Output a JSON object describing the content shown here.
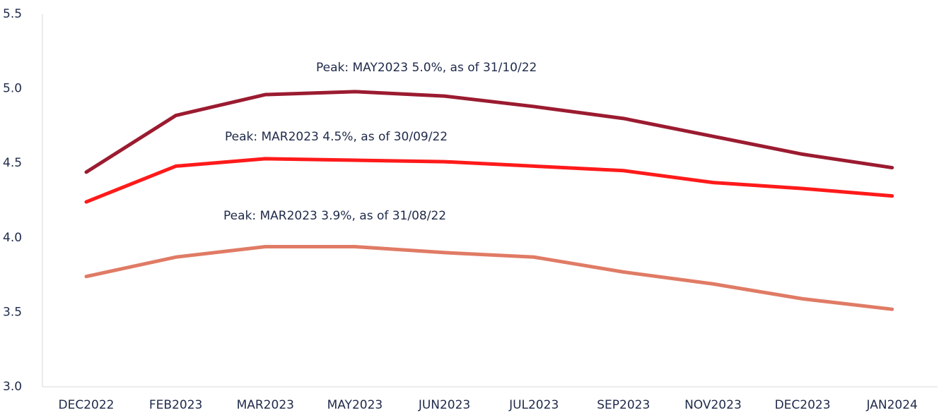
{
  "chart_data": {
    "type": "line",
    "categories": [
      "DEC2022",
      "FEB2023",
      "MAR2023",
      "MAY2023",
      "JUN2023",
      "JUL2023",
      "SEP2023",
      "NOV2023",
      "DEC2023",
      "JAN2024"
    ],
    "series": [
      {
        "color": "#9b1b30",
        "values": [
          4.44,
          4.82,
          4.96,
          4.98,
          4.95,
          4.88,
          4.8,
          4.68,
          4.56,
          4.47
        ]
      },
      {
        "color": "#ff1a1a",
        "values": [
          4.24,
          4.48,
          4.53,
          4.52,
          4.51,
          4.48,
          4.45,
          4.37,
          4.33,
          4.28
        ]
      },
      {
        "color": "#e07b65",
        "values": [
          3.74,
          3.87,
          3.94,
          3.94,
          3.9,
          3.87,
          3.77,
          3.69,
          3.59,
          3.52
        ]
      }
    ],
    "annotations": [
      "Peak: MAY2023 5.0%, as of 31/10/22",
      "Peak: MAR2023 4.5%, as of 30/09/22",
      "Peak: MAR2023 3.9%, as of 31/08/22"
    ],
    "ylim": [
      3.0,
      5.5
    ],
    "yticks": [
      {
        "value": 3.0,
        "label": "3.0"
      },
      3.5,
      {
        "value": 4.0,
        "label": "4.0"
      },
      4.5,
      {
        "value": 5.0,
        "label": "5.0"
      },
      5.5
    ],
    "grid": false
  }
}
